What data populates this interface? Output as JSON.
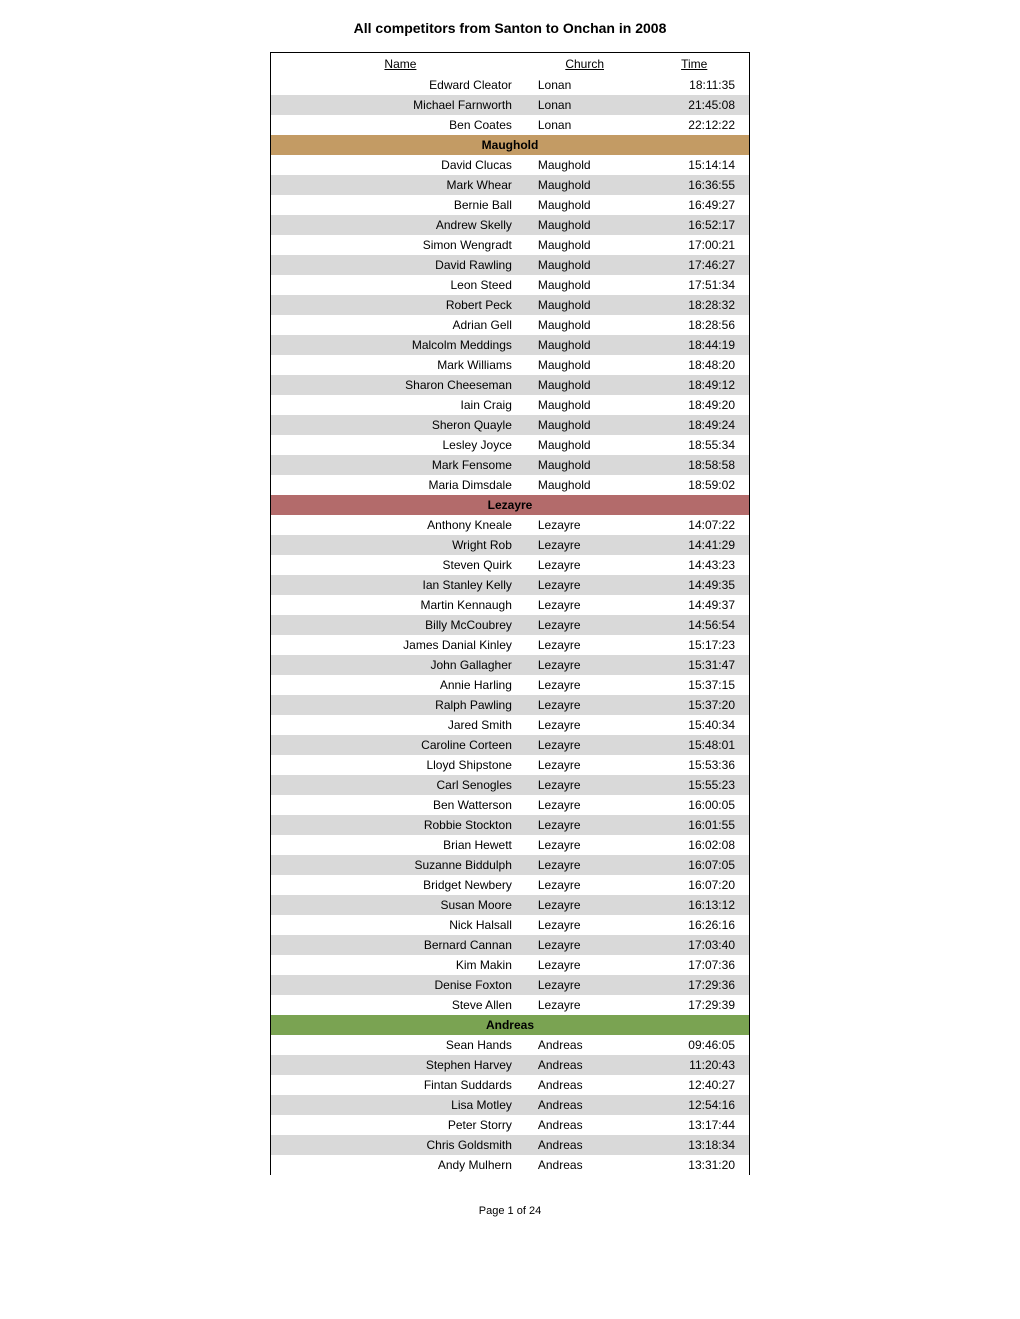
{
  "title": "All competitors from Santon to Onchan in 2008",
  "headers": {
    "name": "Name",
    "church": "Church",
    "time": "Time"
  },
  "colors": {
    "white": "#ffffff",
    "alt_grey": "#d9d9d9",
    "section_maughold": "#c39b64",
    "section_lezayre": "#b36b6b",
    "section_andreas": "#7aa352"
  },
  "pre_rows": [
    {
      "name": "Edward Cleator",
      "church": "Lonan",
      "time": "18:11:35",
      "bg": "#ffffff"
    },
    {
      "name": "Michael Farnworth",
      "church": "Lonan",
      "time": "21:45:08",
      "bg": "#d9d9d9"
    },
    {
      "name": "Ben Coates",
      "church": "Lonan",
      "time": "22:12:22",
      "bg": "#ffffff"
    }
  ],
  "sections": [
    {
      "label": "Maughold",
      "bg": "#c39b64",
      "rows": [
        {
          "name": "David Clucas",
          "church": "Maughold",
          "time": "15:14:14",
          "bg": "#ffffff"
        },
        {
          "name": "Mark Whear",
          "church": "Maughold",
          "time": "16:36:55",
          "bg": "#d9d9d9"
        },
        {
          "name": "Bernie Ball",
          "church": "Maughold",
          "time": "16:49:27",
          "bg": "#ffffff"
        },
        {
          "name": "Andrew Skelly",
          "church": "Maughold",
          "time": "16:52:17",
          "bg": "#d9d9d9"
        },
        {
          "name": "Simon Wengradt",
          "church": "Maughold",
          "time": "17:00:21",
          "bg": "#ffffff"
        },
        {
          "name": "David Rawling",
          "church": "Maughold",
          "time": "17:46:27",
          "bg": "#d9d9d9"
        },
        {
          "name": "Leon Steed",
          "church": "Maughold",
          "time": "17:51:34",
          "bg": "#ffffff"
        },
        {
          "name": "Robert Peck",
          "church": "Maughold",
          "time": "18:28:32",
          "bg": "#d9d9d9"
        },
        {
          "name": "Adrian Gell",
          "church": "Maughold",
          "time": "18:28:56",
          "bg": "#ffffff"
        },
        {
          "name": "Malcolm Meddings",
          "church": "Maughold",
          "time": "18:44:19",
          "bg": "#d9d9d9"
        },
        {
          "name": "Mark Williams",
          "church": "Maughold",
          "time": "18:48:20",
          "bg": "#ffffff"
        },
        {
          "name": "Sharon Cheeseman",
          "church": "Maughold",
          "time": "18:49:12",
          "bg": "#d9d9d9"
        },
        {
          "name": "Iain Craig",
          "church": "Maughold",
          "time": "18:49:20",
          "bg": "#ffffff"
        },
        {
          "name": "Sheron Quayle",
          "church": "Maughold",
          "time": "18:49:24",
          "bg": "#d9d9d9"
        },
        {
          "name": "Lesley Joyce",
          "church": "Maughold",
          "time": "18:55:34",
          "bg": "#ffffff"
        },
        {
          "name": "Mark Fensome",
          "church": "Maughold",
          "time": "18:58:58",
          "bg": "#d9d9d9"
        },
        {
          "name": "Maria Dimsdale",
          "church": "Maughold",
          "time": "18:59:02",
          "bg": "#ffffff"
        }
      ]
    },
    {
      "label": "Lezayre",
      "bg": "#b36b6b",
      "rows": [
        {
          "name": "Anthony Kneale",
          "church": "Lezayre",
          "time": "14:07:22",
          "bg": "#ffffff"
        },
        {
          "name": "Wright Rob",
          "church": "Lezayre",
          "time": "14:41:29",
          "bg": "#d9d9d9"
        },
        {
          "name": "Steven Quirk",
          "church": "Lezayre",
          "time": "14:43:23",
          "bg": "#ffffff"
        },
        {
          "name": "Ian Stanley Kelly",
          "church": "Lezayre",
          "time": "14:49:35",
          "bg": "#d9d9d9"
        },
        {
          "name": "Martin Kennaugh",
          "church": "Lezayre",
          "time": "14:49:37",
          "bg": "#ffffff"
        },
        {
          "name": "Billy McCoubrey",
          "church": "Lezayre",
          "time": "14:56:54",
          "bg": "#d9d9d9"
        },
        {
          "name": "James Danial Kinley",
          "church": "Lezayre",
          "time": "15:17:23",
          "bg": "#ffffff"
        },
        {
          "name": "John Gallagher",
          "church": "Lezayre",
          "time": "15:31:47",
          "bg": "#d9d9d9"
        },
        {
          "name": "Annie Harling",
          "church": "Lezayre",
          "time": "15:37:15",
          "bg": "#ffffff"
        },
        {
          "name": "Ralph Pawling",
          "church": "Lezayre",
          "time": "15:37:20",
          "bg": "#d9d9d9"
        },
        {
          "name": "Jared Smith",
          "church": "Lezayre",
          "time": "15:40:34",
          "bg": "#ffffff"
        },
        {
          "name": "Caroline Corteen",
          "church": "Lezayre",
          "time": "15:48:01",
          "bg": "#d9d9d9"
        },
        {
          "name": "Lloyd Shipstone",
          "church": "Lezayre",
          "time": "15:53:36",
          "bg": "#ffffff"
        },
        {
          "name": "Carl Senogles",
          "church": "Lezayre",
          "time": "15:55:23",
          "bg": "#d9d9d9"
        },
        {
          "name": "Ben Watterson",
          "church": "Lezayre",
          "time": "16:00:05",
          "bg": "#ffffff"
        },
        {
          "name": "Robbie Stockton",
          "church": "Lezayre",
          "time": "16:01:55",
          "bg": "#d9d9d9"
        },
        {
          "name": "Brian Hewett",
          "church": "Lezayre",
          "time": "16:02:08",
          "bg": "#ffffff"
        },
        {
          "name": "Suzanne Biddulph",
          "church": "Lezayre",
          "time": "16:07:05",
          "bg": "#d9d9d9"
        },
        {
          "name": "Bridget Newbery",
          "church": "Lezayre",
          "time": "16:07:20",
          "bg": "#ffffff"
        },
        {
          "name": "Susan Moore",
          "church": "Lezayre",
          "time": "16:13:12",
          "bg": "#d9d9d9"
        },
        {
          "name": "Nick Halsall",
          "church": "Lezayre",
          "time": "16:26:16",
          "bg": "#ffffff"
        },
        {
          "name": "Bernard Cannan",
          "church": "Lezayre",
          "time": "17:03:40",
          "bg": "#d9d9d9"
        },
        {
          "name": "Kim Makin",
          "church": "Lezayre",
          "time": "17:07:36",
          "bg": "#ffffff"
        },
        {
          "name": "Denise Foxton",
          "church": "Lezayre",
          "time": "17:29:36",
          "bg": "#d9d9d9"
        },
        {
          "name": "Steve Allen",
          "church": "Lezayre",
          "time": "17:29:39",
          "bg": "#ffffff"
        }
      ]
    },
    {
      "label": "Andreas",
      "bg": "#7aa352",
      "rows": [
        {
          "name": "Sean Hands",
          "church": "Andreas",
          "time": "09:46:05",
          "bg": "#ffffff"
        },
        {
          "name": "Stephen Harvey",
          "church": "Andreas",
          "time": "11:20:43",
          "bg": "#d9d9d9"
        },
        {
          "name": "Fintan Suddards",
          "church": "Andreas",
          "time": "12:40:27",
          "bg": "#ffffff"
        },
        {
          "name": "Lisa Motley",
          "church": "Andreas",
          "time": "12:54:16",
          "bg": "#d9d9d9"
        },
        {
          "name": "Peter Storry",
          "church": "Andreas",
          "time": "13:17:44",
          "bg": "#ffffff"
        },
        {
          "name": "Chris Goldsmith",
          "church": "Andreas",
          "time": "13:18:34",
          "bg": "#d9d9d9"
        },
        {
          "name": "Andy Mulhern",
          "church": "Andreas",
          "time": "13:31:20",
          "bg": "#ffffff"
        }
      ]
    }
  ],
  "footer": "Page 1 of 24"
}
